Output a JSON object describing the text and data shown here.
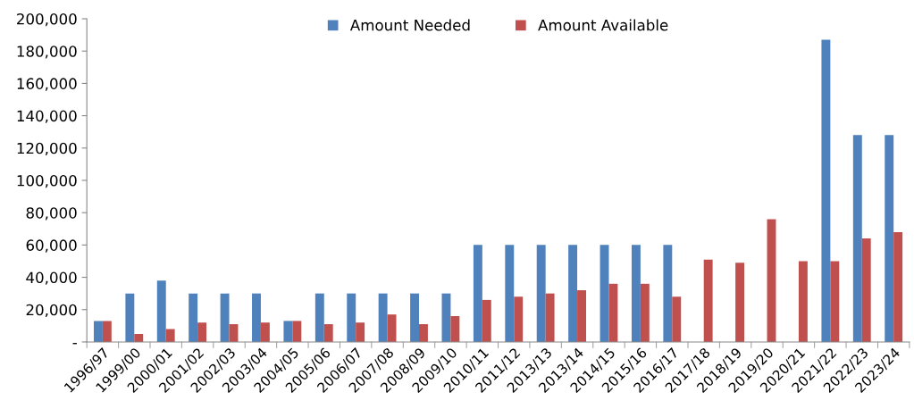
{
  "chart_data": {
    "type": "bar",
    "categories": [
      "1996/97",
      "1999/00",
      "2000/01",
      "2001/02",
      "2002/03",
      "2003/04",
      "2004/05",
      "2005/06",
      "2006/07",
      "2007/08",
      "2008/09",
      "2009/10",
      "2010/11",
      "2011/12",
      "2013/13",
      "2013/14",
      "2014/15",
      "2015/16",
      "2016/17",
      "2017/18",
      "2018/19",
      "2019/20",
      "2020/21",
      "2021/22",
      "2022/23",
      "2023/24"
    ],
    "series": [
      {
        "name": "Amount Needed",
        "color": "#4f81bd",
        "values": [
          13000,
          30000,
          38000,
          30000,
          30000,
          30000,
          13000,
          30000,
          30000,
          30000,
          30000,
          30000,
          60000,
          60000,
          60000,
          60000,
          60000,
          60000,
          60000,
          null,
          null,
          null,
          null,
          187000,
          128000,
          128000
        ]
      },
      {
        "name": "Amount Available",
        "color": "#c0504d",
        "values": [
          13000,
          5000,
          8000,
          12000,
          11000,
          12000,
          13000,
          11000,
          12000,
          17000,
          11000,
          16000,
          26000,
          28000,
          30000,
          32000,
          36000,
          36000,
          28000,
          51000,
          49000,
          76000,
          50000,
          50000,
          64000,
          68000
        ]
      }
    ],
    "ylim": [
      0,
      200000
    ],
    "yticks": [
      {
        "value": 0,
        "label": "-"
      },
      {
        "value": 20000,
        "label": "20,000"
      },
      {
        "value": 40000,
        "label": "40,000"
      },
      {
        "value": 60000,
        "label": "60,000"
      },
      {
        "value": 80000,
        "label": "80,000"
      },
      {
        "value": 100000,
        "label": "100,000"
      },
      {
        "value": 120000,
        "label": "120,000"
      },
      {
        "value": 140000,
        "label": "140,000"
      },
      {
        "value": 160000,
        "label": "160,000"
      },
      {
        "value": 180000,
        "label": "180,000"
      },
      {
        "value": 200000,
        "label": "200,000"
      }
    ],
    "grid": false,
    "legend": "top"
  }
}
